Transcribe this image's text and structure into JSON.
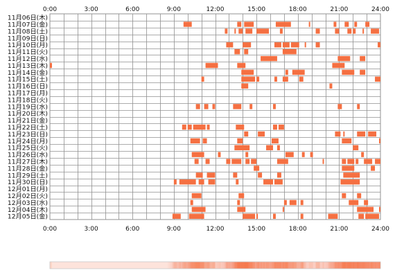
{
  "chart_data": {
    "type": "heatmap",
    "title": "",
    "x_axis": {
      "range": [
        0,
        24
      ],
      "unit": "hours",
      "ticks": [
        0,
        3,
        6,
        9,
        12,
        15,
        18,
        21,
        24
      ],
      "tick_labels": [
        "0:00",
        "3:00",
        "6:00",
        "9:00",
        "12:00",
        "15:00",
        "18:00",
        "21:00",
        "24:00"
      ]
    },
    "grid": true,
    "colors": {
      "activity": "#f57042",
      "grid": "#909090",
      "density_light": "#fde8e1",
      "density_dark": "#f38268"
    },
    "rows": [
      {
        "label": "11月06日(木)",
        "spans": []
      },
      {
        "label": "11月07日(金)",
        "spans": [
          [
            9.7,
            10.3
          ],
          [
            13.6,
            13.9
          ],
          [
            14.1,
            14.8
          ],
          [
            16.4,
            17.5
          ],
          [
            18.8,
            18.9
          ],
          [
            20.6,
            20.8
          ],
          [
            21.4,
            21.7
          ],
          [
            22.1,
            22.3
          ],
          [
            22.9,
            23.2
          ]
        ]
      },
      {
        "label": "11月08日(土)",
        "spans": [
          [
            12.7,
            12.9
          ],
          [
            13.4,
            13.5
          ],
          [
            13.7,
            14.0
          ],
          [
            14.2,
            14.7
          ],
          [
            15.0,
            15.9
          ],
          [
            16.7,
            16.9
          ],
          [
            19.3,
            19.6
          ],
          [
            20.7,
            21.0
          ],
          [
            21.6,
            21.9
          ],
          [
            22.0,
            22.2
          ],
          [
            22.7,
            22.8
          ],
          [
            23.3,
            23.9
          ]
        ]
      },
      {
        "label": "11月09日(日)",
        "spans": []
      },
      {
        "label": "11月10日(月)",
        "spans": [
          [
            12.8,
            13.3
          ],
          [
            14.0,
            14.6
          ],
          [
            16.3,
            16.8
          ],
          [
            16.9,
            17.4
          ],
          [
            17.5,
            18.1
          ],
          [
            18.5,
            18.6
          ],
          [
            19.3,
            19.6
          ],
          [
            23.8,
            24.0
          ]
        ]
      },
      {
        "label": "11月11日(火)",
        "spans": [
          [
            13.4,
            13.8
          ],
          [
            14.1,
            14.4
          ],
          [
            16.9,
            17.9
          ]
        ]
      },
      {
        "label": "11月12日(水)",
        "spans": [
          [
            15.3,
            16.5
          ],
          [
            20.9,
            21.8
          ],
          [
            22.5,
            22.9
          ]
        ]
      },
      {
        "label": "11月13日(木)",
        "spans": [
          [
            0.0,
            0.15
          ],
          [
            11.3,
            12.2
          ],
          [
            13.6,
            14.2
          ],
          [
            20.5,
            21.4
          ]
        ]
      },
      {
        "label": "11月14日(金)",
        "spans": [
          [
            13.9,
            14.8
          ],
          [
            17.1,
            17.3
          ],
          [
            17.6,
            18.5
          ],
          [
            21.2,
            22.1
          ],
          [
            22.5,
            22.9
          ]
        ]
      },
      {
        "label": "11月15日(土)",
        "spans": [
          [
            11.0,
            11.2
          ],
          [
            13.9,
            14.9
          ],
          [
            15.0,
            15.2
          ],
          [
            16.3,
            16.5
          ],
          [
            16.9,
            17.3
          ],
          [
            18.1,
            18.4
          ],
          [
            23.6,
            24.0
          ]
        ]
      },
      {
        "label": "11月16日(日)",
        "spans": [
          [
            13.9,
            14.4
          ],
          [
            20.3,
            20.5
          ]
        ]
      },
      {
        "label": "11月17日(月)",
        "spans": []
      },
      {
        "label": "11月18日(火)",
        "spans": []
      },
      {
        "label": "11月19日(水)",
        "spans": [
          [
            10.6,
            10.9
          ],
          [
            11.2,
            11.5
          ],
          [
            11.8,
            12.0
          ],
          [
            13.3,
            13.9
          ],
          [
            14.5,
            14.7
          ],
          [
            16.2,
            16.4
          ],
          [
            20.9,
            21.2
          ],
          [
            22.3,
            22.5
          ]
        ]
      },
      {
        "label": "11月20日(木)",
        "spans": []
      },
      {
        "label": "11月21日(金)",
        "spans": []
      },
      {
        "label": "11月22日(土)",
        "spans": [
          [
            9.6,
            9.9
          ],
          [
            10.0,
            10.3
          ],
          [
            10.4,
            11.3
          ],
          [
            11.4,
            11.6
          ],
          [
            13.5,
            14.1
          ],
          [
            16.2,
            16.5
          ],
          [
            16.6,
            17.0
          ]
        ]
      },
      {
        "label": "11月23日(日)",
        "spans": [
          [
            14.1,
            14.4
          ],
          [
            15.1,
            15.6
          ],
          [
            20.7,
            21.1
          ],
          [
            21.3,
            21.4
          ],
          [
            22.3,
            22.9
          ],
          [
            23.1,
            23.7
          ]
        ]
      },
      {
        "label": "11月24日(月)",
        "spans": [
          [
            10.2,
            10.9
          ],
          [
            11.1,
            11.4
          ],
          [
            13.6,
            14.0
          ],
          [
            16.1,
            16.6
          ],
          [
            21.2,
            21.9
          ],
          [
            23.9,
            24.0
          ]
        ]
      },
      {
        "label": "11月25日(火)",
        "spans": [
          [
            13.4,
            14.5
          ],
          [
            15.7,
            16.2
          ],
          [
            16.5,
            16.7
          ],
          [
            22.0,
            22.4
          ]
        ]
      },
      {
        "label": "11月26日(水)",
        "spans": [
          [
            10.3,
            11.2
          ],
          [
            12.2,
            12.4
          ],
          [
            14.2,
            14.4
          ],
          [
            17.1,
            17.7
          ],
          [
            18.3,
            18.5
          ],
          [
            18.9,
            19.1
          ],
          [
            22.6,
            22.8
          ]
        ]
      },
      {
        "label": "11月27日(木)",
        "spans": [
          [
            10.5,
            10.8
          ],
          [
            11.3,
            11.6
          ],
          [
            12.8,
            13.1
          ],
          [
            13.2,
            13.9
          ],
          [
            14.2,
            14.5
          ],
          [
            14.6,
            15.0
          ],
          [
            16.5,
            17.3
          ],
          [
            19.8,
            19.9
          ],
          [
            21.2,
            21.5
          ],
          [
            21.6,
            22.1
          ],
          [
            22.2,
            22.4
          ],
          [
            22.8,
            23.4
          ],
          [
            23.6,
            24.0
          ]
        ]
      },
      {
        "label": "11月28日(金)",
        "spans": [
          [
            14.8,
            15.2
          ],
          [
            21.2,
            22.1
          ],
          [
            23.3,
            23.6
          ]
        ]
      },
      {
        "label": "11月29日(土)",
        "spans": [
          [
            10.6,
            11.1
          ],
          [
            11.4,
            12.0
          ],
          [
            13.3,
            13.6
          ],
          [
            15.1,
            15.4
          ],
          [
            16.5,
            16.8
          ],
          [
            21.3,
            22.5
          ]
        ]
      },
      {
        "label": "11月30日(日)",
        "spans": [
          [
            9.0,
            9.2
          ],
          [
            9.4,
            10.6
          ],
          [
            10.8,
            11.2
          ],
          [
            11.5,
            12.0
          ],
          [
            13.5,
            13.7
          ],
          [
            15.5,
            16.2
          ],
          [
            16.3,
            16.9
          ],
          [
            21.1,
            22.5
          ]
        ]
      },
      {
        "label": "12月01日(月)",
        "spans": []
      },
      {
        "label": "12月02日(火)",
        "spans": [
          [
            10.3,
            11.0
          ],
          [
            13.7,
            14.1
          ],
          [
            21.2,
            21.5
          ],
          [
            22.3,
            22.6
          ]
        ]
      },
      {
        "label": "12月03日(水)",
        "spans": [
          [
            10.2,
            10.4
          ],
          [
            13.6,
            13.8
          ],
          [
            17.0,
            17.2
          ],
          [
            17.4,
            17.9
          ],
          [
            18.2,
            18.4
          ],
          [
            21.7,
            22.4
          ],
          [
            22.8,
            23.1
          ]
        ]
      },
      {
        "label": "12月04日(木)",
        "spans": [
          [
            10.3,
            11.3
          ],
          [
            13.6,
            14.2
          ],
          [
            16.9,
            17.0
          ],
          [
            22.3,
            23.5
          ],
          [
            23.9,
            24.0
          ]
        ]
      },
      {
        "label": "12月05日(金)",
        "spans": [
          [
            8.9,
            9.5
          ],
          [
            10.1,
            11.2
          ],
          [
            14.0,
            14.9
          ],
          [
            15.0,
            15.1
          ],
          [
            16.2,
            16.4
          ],
          [
            18.2,
            18.4
          ],
          [
            20.2,
            20.9
          ],
          [
            22.4,
            22.8
          ],
          [
            22.9,
            23.9
          ]
        ]
      }
    ],
    "density_bar": {
      "type": "area",
      "x_range": [
        0,
        24
      ],
      "intensity_points": [
        {
          "x": 0,
          "v": 0.05
        },
        {
          "x": 8.5,
          "v": 0.05
        },
        {
          "x": 9.0,
          "v": 0.3
        },
        {
          "x": 10.0,
          "v": 0.45
        },
        {
          "x": 11.0,
          "v": 0.4
        },
        {
          "x": 12.0,
          "v": 0.15
        },
        {
          "x": 13.0,
          "v": 0.5
        },
        {
          "x": 14.0,
          "v": 0.75
        },
        {
          "x": 15.0,
          "v": 0.55
        },
        {
          "x": 16.0,
          "v": 0.5
        },
        {
          "x": 17.0,
          "v": 0.55
        },
        {
          "x": 18.0,
          "v": 0.4
        },
        {
          "x": 19.0,
          "v": 0.25
        },
        {
          "x": 20.0,
          "v": 0.3
        },
        {
          "x": 21.0,
          "v": 0.65
        },
        {
          "x": 22.0,
          "v": 0.75
        },
        {
          "x": 23.0,
          "v": 0.7
        },
        {
          "x": 24.0,
          "v": 0.6
        }
      ]
    }
  }
}
